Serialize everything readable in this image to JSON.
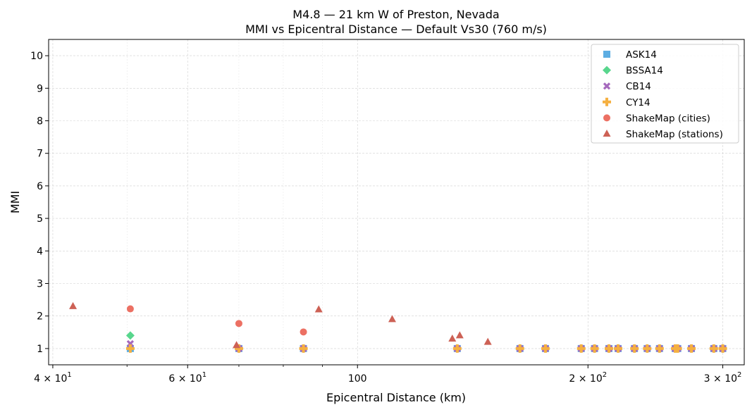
{
  "chart_data": {
    "type": "scatter",
    "title": "M4.8 — 21 km W of Preston, Nevada",
    "subtitle": "MMI vs Epicentral Distance — Default Vs30 (760 m/s)",
    "xlabel": "Epicentral Distance (km)",
    "ylabel": "MMI",
    "xscale": "log",
    "xlim": [
      39.5,
      320
    ],
    "ylim": [
      0.5,
      10.5
    ],
    "grid": true,
    "legend_position": "top-right",
    "x_ticks": [
      {
        "value": 40,
        "base": "4 × 10",
        "exp": "1"
      },
      {
        "value": 60,
        "base": "6 × 10",
        "exp": "1"
      },
      {
        "value": 100,
        "base": "100",
        "exp": ""
      },
      {
        "value": 200,
        "base": "2 × 10",
        "exp": "2"
      },
      {
        "value": 300,
        "base": "3 × 10",
        "exp": "2"
      }
    ],
    "y_ticks": [
      "1",
      "2",
      "3",
      "4",
      "5",
      "6",
      "7",
      "8",
      "9",
      "10"
    ],
    "series": [
      {
        "name": "ASK14",
        "marker": "square",
        "color": "#5DADE2",
        "x": [
          50.5,
          70,
          85,
          135,
          163,
          176,
          196,
          204,
          213,
          219,
          230,
          239,
          248,
          260,
          262,
          273,
          292,
          300
        ],
        "y": [
          1.0,
          1.0,
          1.0,
          1.0,
          1.0,
          1.0,
          1.0,
          1.0,
          1.0,
          1.0,
          1.0,
          1.0,
          1.0,
          1.0,
          1.0,
          1.0,
          1.0,
          1.0
        ]
      },
      {
        "name": "BSSA14",
        "marker": "diamond",
        "color": "#58D68D",
        "x": [
          50.5,
          70,
          85,
          135,
          163,
          176,
          196,
          204,
          213,
          219,
          230,
          239,
          248,
          260,
          262,
          273,
          292,
          300
        ],
        "y": [
          1.4,
          1.0,
          1.0,
          1.0,
          1.0,
          1.0,
          1.0,
          1.0,
          1.0,
          1.0,
          1.0,
          1.0,
          1.0,
          1.0,
          1.0,
          1.0,
          1.0,
          1.0
        ]
      },
      {
        "name": "CB14",
        "marker": "x",
        "color": "#A569BD",
        "x": [
          50.5,
          70,
          85,
          135,
          163,
          176,
          196,
          204,
          213,
          219,
          230,
          239,
          248,
          260,
          262,
          273,
          292,
          300
        ],
        "y": [
          1.15,
          1.0,
          1.0,
          1.0,
          1.0,
          1.0,
          1.0,
          1.0,
          1.0,
          1.0,
          1.0,
          1.0,
          1.0,
          1.0,
          1.0,
          1.0,
          1.0,
          1.0
        ]
      },
      {
        "name": "CY14",
        "marker": "plus",
        "color": "#F5B041",
        "x": [
          50.5,
          70,
          85,
          135,
          163,
          176,
          196,
          204,
          213,
          219,
          230,
          239,
          248,
          260,
          262,
          273,
          292,
          300
        ],
        "y": [
          1.0,
          1.0,
          1.0,
          1.0,
          1.0,
          1.0,
          1.0,
          1.0,
          1.0,
          1.0,
          1.0,
          1.0,
          1.0,
          1.0,
          1.0,
          1.0,
          1.0,
          1.0
        ]
      },
      {
        "name": "ShakeMap (cities)",
        "marker": "circle",
        "color": "#EC7063",
        "x": [
          50.5,
          70,
          85
        ],
        "y": [
          2.22,
          1.77,
          1.51
        ]
      },
      {
        "name": "ShakeMap (stations)",
        "marker": "triangle",
        "color": "#CD6155",
        "x": [
          42.5,
          69.5,
          89,
          111,
          133,
          136,
          148
        ],
        "y": [
          2.3,
          1.1,
          2.2,
          1.9,
          1.3,
          1.4,
          1.2
        ]
      }
    ]
  }
}
